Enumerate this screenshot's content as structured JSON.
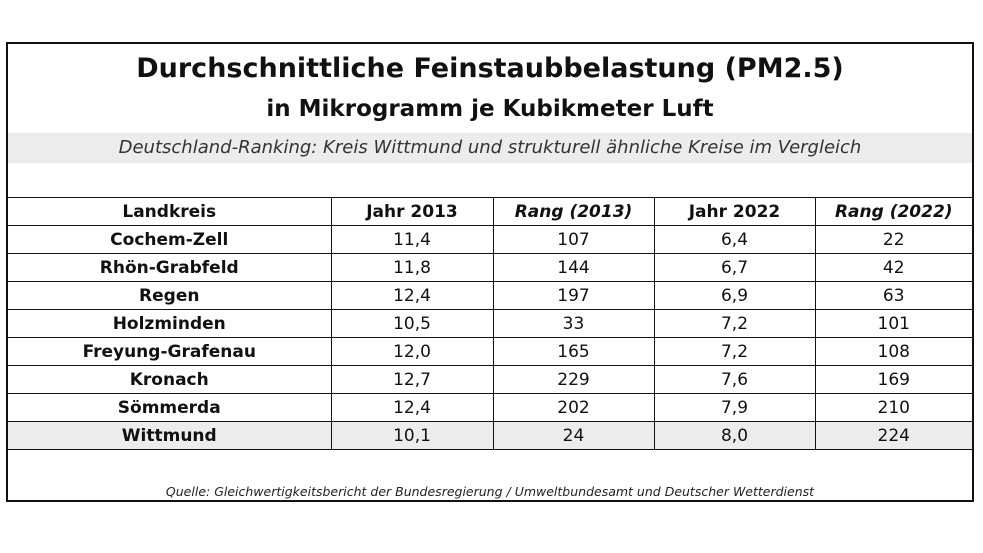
{
  "header": {
    "title_line1": "Durchschnittliche Feinstaubbelastung (PM2.5)",
    "title_line2": "in Mikrogramm je Kubikmeter Luft",
    "subtitle": "Deutschland-Ranking: Kreis Wittmund und strukturell ähnliche Kreise im Vergleich"
  },
  "table": {
    "columns": [
      "Landkreis",
      "Jahr 2013",
      "Rang (2013)",
      "Jahr 2022",
      "Rang (2022)"
    ],
    "rows": [
      [
        "Cochem-Zell",
        "11,4",
        "107",
        "6,4",
        "22"
      ],
      [
        "Rhön-Grabfeld",
        "11,8",
        "144",
        "6,7",
        "42"
      ],
      [
        "Regen",
        "12,4",
        "197",
        "6,9",
        "63"
      ],
      [
        "Holzminden",
        "10,5",
        "33",
        "7,2",
        "101"
      ],
      [
        "Freyung-Grafenau",
        "12,0",
        "165",
        "7,2",
        "108"
      ],
      [
        "Kronach",
        "12,7",
        "229",
        "7,6",
        "169"
      ],
      [
        "Sömmerda",
        "12,4",
        "202",
        "7,9",
        "210"
      ],
      [
        "Wittmund",
        "10,1",
        "24",
        "8,0",
        "224"
      ]
    ],
    "highlight_color": "#ececec"
  },
  "source": "Quelle: Gleichwertigkeitsbericht der Bundesregierung / Umweltbundesamt und Deutscher Wetterdienst"
}
